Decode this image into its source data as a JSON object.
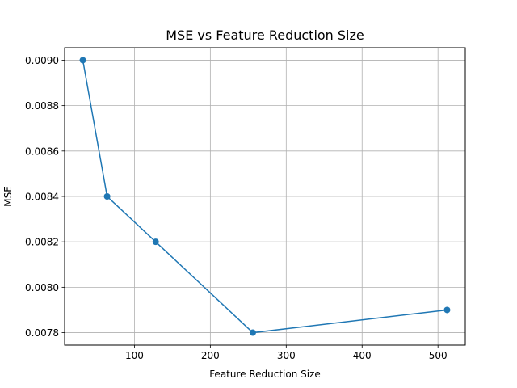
{
  "chart_data": {
    "type": "line",
    "title": "MSE vs Feature Reduction Size",
    "xlabel": "Feature Reduction Size",
    "ylabel": "MSE",
    "xlim": [
      8,
      536
    ],
    "ylim": [
      0.007745,
      0.009055
    ],
    "xticks": [
      100,
      200,
      300,
      400,
      500
    ],
    "xtick_labels": [
      "100",
      "200",
      "300",
      "400",
      "500"
    ],
    "yticks": [
      0.0078,
      0.008,
      0.0082,
      0.0084,
      0.0086,
      0.0088,
      0.009
    ],
    "ytick_labels": [
      "0.0078",
      "0.0080",
      "0.0082",
      "0.0084",
      "0.0086",
      "0.0088",
      "0.0090"
    ],
    "grid": true,
    "series": [
      {
        "x": [
          32,
          64,
          128,
          256,
          512
        ],
        "y": [
          0.009,
          0.0084,
          0.0082,
          0.0078,
          0.0079
        ],
        "color": "#1f77b4",
        "marker": "circle"
      }
    ]
  }
}
